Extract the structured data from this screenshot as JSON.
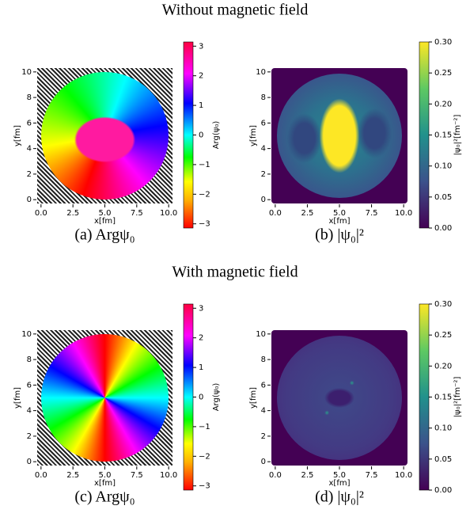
{
  "titles": [
    "Without magnetic field",
    "With magnetic field"
  ],
  "chart_data": [
    {
      "type": "heatmap",
      "caption": "(a) Argψ₀",
      "xlabel": "x[fm]",
      "ylabel": "y[fm]",
      "colormap": "hsv",
      "xlim": [
        -0.3,
        10.3
      ],
      "ylim": [
        -0.3,
        10.3
      ],
      "xticks": [
        {
          "value": 0,
          "label": "0.0"
        },
        {
          "value": 2.5,
          "label": "2.5"
        },
        {
          "value": 5,
          "label": "5.0"
        },
        {
          "value": 7.5,
          "label": "7.5"
        },
        {
          "value": 10,
          "label": "10.0"
        }
      ],
      "yticks": [
        0,
        2,
        4,
        6,
        8,
        10
      ],
      "colorbar": {
        "label": "Arg(ψ₀)",
        "lim": [
          -3.14159,
          3.14159
        ],
        "ticks": [
          {
            "value": -3,
            "label": "−3"
          },
          {
            "value": -2,
            "label": "−2"
          },
          {
            "value": -1,
            "label": "−1"
          },
          0,
          1,
          2,
          3
        ]
      }
    },
    {
      "type": "heatmap",
      "caption": "(b) |ψ₀|²",
      "xlabel": "x[fm]",
      "ylabel": "y[fm]",
      "colormap": "viridis",
      "xlim": [
        -0.3,
        10.3
      ],
      "ylim": [
        -0.3,
        10.3
      ],
      "xticks": [
        {
          "value": 0,
          "label": "0.0"
        },
        {
          "value": 2.5,
          "label": "2.5"
        },
        {
          "value": 5,
          "label": "5.0"
        },
        {
          "value": 7.5,
          "label": "7.5"
        },
        {
          "value": 10,
          "label": "10.0"
        }
      ],
      "yticks": [
        0,
        2,
        4,
        6,
        8,
        10
      ],
      "colorbar": {
        "label": "|ψ₀|²[fm⁻²]",
        "lim": [
          0,
          0.3
        ],
        "ticks": [
          {
            "value": 0,
            "label": "0.00"
          },
          {
            "value": 0.05,
            "label": "0.05"
          },
          {
            "value": 0.1,
            "label": "0.10"
          },
          {
            "value": 0.15,
            "label": "0.15"
          },
          {
            "value": 0.2,
            "label": "0.20"
          },
          {
            "value": 0.25,
            "label": "0.25"
          },
          {
            "value": 0.3,
            "label": "0.30"
          }
        ]
      }
    },
    {
      "type": "heatmap",
      "caption": "(c) Argψ₀",
      "xlabel": "x[fm]",
      "ylabel": "y[fm]",
      "colormap": "hsv",
      "xlim": [
        -0.3,
        10.3
      ],
      "ylim": [
        -0.3,
        10.3
      ],
      "xticks": [
        {
          "value": 0,
          "label": "0.0"
        },
        {
          "value": 2.5,
          "label": "2.5"
        },
        {
          "value": 5,
          "label": "5.0"
        },
        {
          "value": 7.5,
          "label": "7.5"
        },
        {
          "value": 10,
          "label": "10.0"
        }
      ],
      "yticks": [
        0,
        2,
        4,
        6,
        8,
        10
      ],
      "colorbar": {
        "label": "Arg(ψ₀)",
        "lim": [
          -3.14159,
          3.14159
        ],
        "ticks": [
          {
            "value": -3,
            "label": "−3"
          },
          {
            "value": -2,
            "label": "−2"
          },
          {
            "value": -1,
            "label": "−1"
          },
          0,
          1,
          2,
          3
        ]
      }
    },
    {
      "type": "heatmap",
      "caption": "(d) |ψ₀|²",
      "xlabel": "x[fm]",
      "ylabel": "y[fm]",
      "colormap": "viridis",
      "xlim": [
        -0.3,
        10.3
      ],
      "ylim": [
        -0.3,
        10.3
      ],
      "xticks": [
        {
          "value": 0,
          "label": "0.0"
        },
        {
          "value": 2.5,
          "label": "2.5"
        },
        {
          "value": 5,
          "label": "5.0"
        },
        {
          "value": 7.5,
          "label": "7.5"
        },
        {
          "value": 10,
          "label": "10.0"
        }
      ],
      "yticks": [
        0,
        2,
        4,
        6,
        8,
        10
      ],
      "colorbar": {
        "label": "|ψ₀|²[fm⁻²]",
        "lim": [
          0,
          0.3
        ],
        "ticks": [
          {
            "value": 0,
            "label": "0.00"
          },
          {
            "value": 0.05,
            "label": "0.05"
          },
          {
            "value": 0.1,
            "label": "0.10"
          },
          {
            "value": 0.15,
            "label": "0.15"
          },
          {
            "value": 0.2,
            "label": "0.20"
          },
          {
            "value": 0.25,
            "label": "0.25"
          },
          {
            "value": 0.3,
            "label": "0.30"
          }
        ]
      }
    }
  ]
}
